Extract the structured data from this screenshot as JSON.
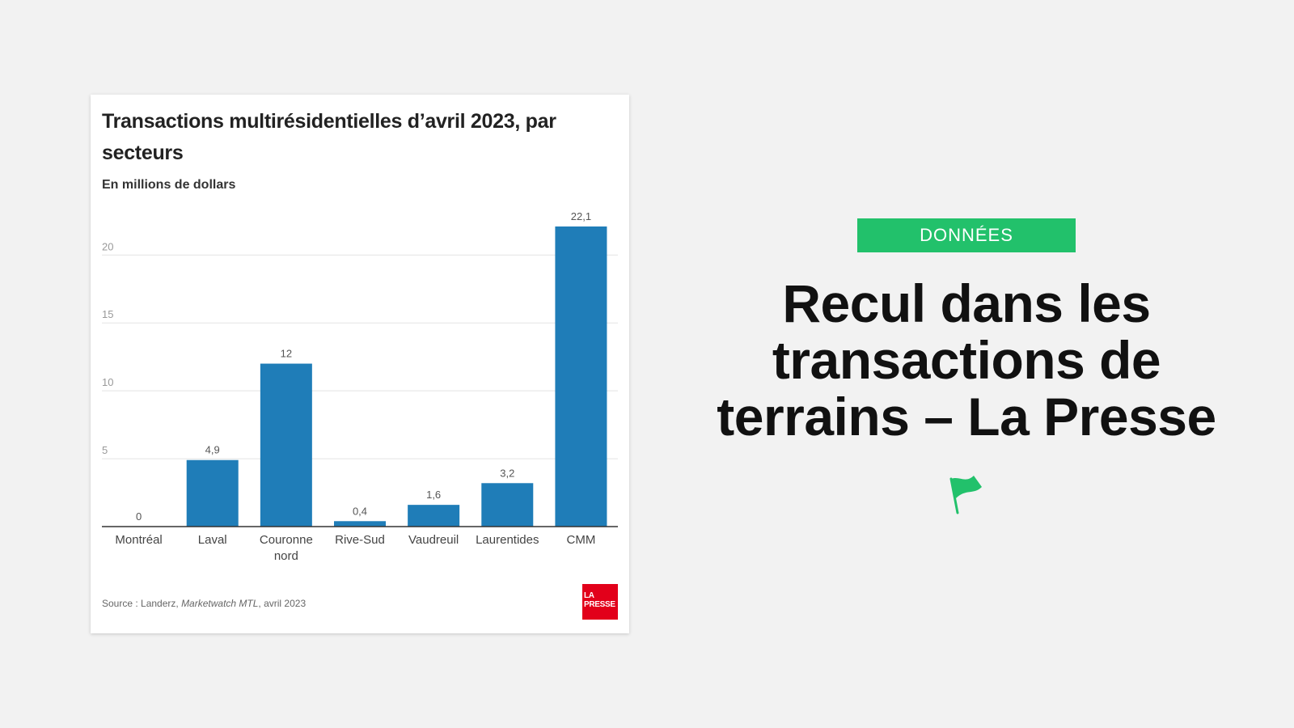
{
  "card": {
    "title": "Transactions multirésidentielles d’avril 2023, par secteurs",
    "subtitle": "En millions de dollars",
    "source_prefix": "Source : Landerz, ",
    "source_publication": "Marketwatch MTL",
    "source_suffix": ", avril 2023",
    "logo_line1": "LA",
    "logo_line2": "PRESSE"
  },
  "chart_data": {
    "type": "bar",
    "title": "Transactions multirésidentielles d’avril 2023, par secteurs",
    "ylabel": "En millions de dollars",
    "categories": [
      "Montréal",
      "Laval",
      "Couronne nord",
      "Rive-Sud",
      "Vaudreuil",
      "Laurentides",
      "CMM"
    ],
    "values": [
      0,
      4.9,
      12,
      0.4,
      1.6,
      3.2,
      22.1
    ],
    "value_labels": [
      "0",
      "4,9",
      "12",
      "0,4",
      "1,6",
      "3,2",
      "22,1"
    ],
    "ylim": [
      0,
      22.1
    ],
    "yticks": [
      5,
      10,
      15,
      20
    ],
    "grid": true,
    "bar_color": "#1f7db8"
  },
  "side": {
    "badge": "DONNÉES",
    "headline": "Recul dans les transactions de terrains – La Presse",
    "badge_color": "#22c16b",
    "flag_icon": "flag-icon"
  }
}
